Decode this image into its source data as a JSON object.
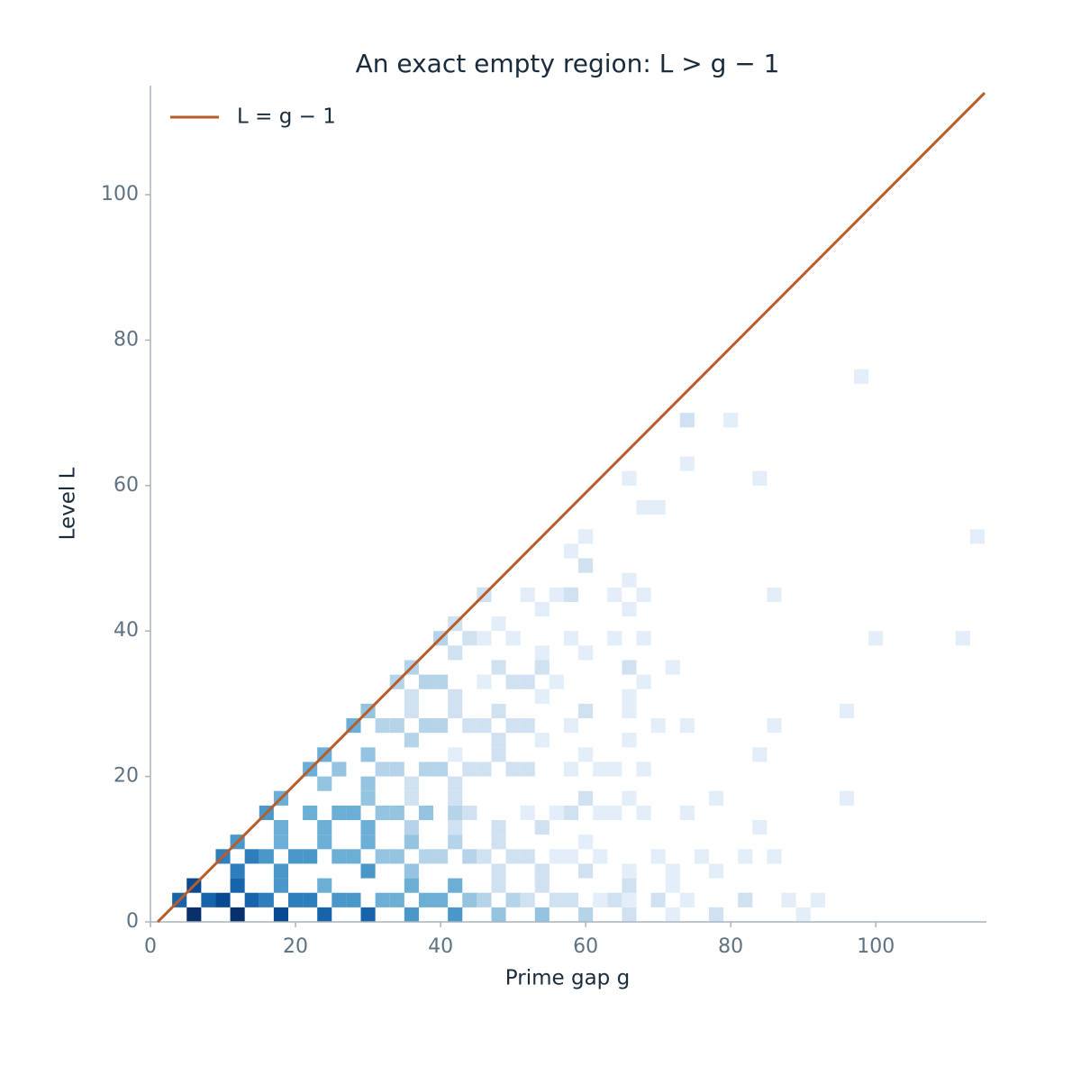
{
  "chart_data": {
    "type": "heatmap",
    "title": "An exact empty region: L > g − 1",
    "x_label": "Prime gap g",
    "y_label": "Level L",
    "xlim": [
      0,
      115
    ],
    "ylim": [
      0,
      115
    ],
    "xticks": [
      0,
      20,
      40,
      60,
      80,
      100
    ],
    "yticks": [
      0,
      20,
      40,
      60,
      80,
      100
    ],
    "colormap": "Blues",
    "legend": "upper left",
    "cells": [
      [
        6,
        1,
        10
      ],
      [
        12,
        1,
        10
      ],
      [
        18,
        1,
        9
      ],
      [
        24,
        1,
        8
      ],
      [
        30,
        1,
        8
      ],
      [
        36,
        1,
        6
      ],
      [
        42,
        1,
        6
      ],
      [
        48,
        1,
        4
      ],
      [
        54,
        1,
        4
      ],
      [
        60,
        1,
        3
      ],
      [
        66,
        1,
        2
      ],
      [
        72,
        1,
        1
      ],
      [
        78,
        1,
        2
      ],
      [
        90,
        1,
        1
      ],
      [
        4,
        3,
        8
      ],
      [
        8,
        3,
        8
      ],
      [
        10,
        3,
        9
      ],
      [
        14,
        3,
        8
      ],
      [
        16,
        3,
        7
      ],
      [
        20,
        3,
        7
      ],
      [
        22,
        3,
        7
      ],
      [
        26,
        3,
        6
      ],
      [
        28,
        3,
        6
      ],
      [
        32,
        3,
        5
      ],
      [
        34,
        3,
        5
      ],
      [
        38,
        3,
        5
      ],
      [
        40,
        3,
        5
      ],
      [
        44,
        3,
        4
      ],
      [
        46,
        3,
        3
      ],
      [
        50,
        3,
        3
      ],
      [
        52,
        3,
        2
      ],
      [
        56,
        3,
        2
      ],
      [
        58,
        3,
        2
      ],
      [
        62,
        3,
        1
      ],
      [
        64,
        3,
        2
      ],
      [
        66,
        3,
        1
      ],
      [
        70,
        3,
        2
      ],
      [
        74,
        3,
        1
      ],
      [
        82,
        3,
        2
      ],
      [
        88,
        3,
        1
      ],
      [
        92,
        3,
        1
      ],
      [
        6,
        5,
        9
      ],
      [
        12,
        5,
        8
      ],
      [
        18,
        5,
        6
      ],
      [
        24,
        5,
        5
      ],
      [
        36,
        5,
        5
      ],
      [
        42,
        5,
        5
      ],
      [
        48,
        5,
        2
      ],
      [
        54,
        5,
        2
      ],
      [
        66,
        5,
        2
      ],
      [
        72,
        5,
        1
      ],
      [
        12,
        7,
        7
      ],
      [
        18,
        7,
        6
      ],
      [
        30,
        7,
        6
      ],
      [
        36,
        7,
        4
      ],
      [
        48,
        7,
        2
      ],
      [
        54,
        7,
        2
      ],
      [
        60,
        7,
        2
      ],
      [
        66,
        7,
        1
      ],
      [
        72,
        7,
        1
      ],
      [
        78,
        7,
        1
      ],
      [
        10,
        9,
        7
      ],
      [
        14,
        9,
        7
      ],
      [
        16,
        9,
        6
      ],
      [
        20,
        9,
        6
      ],
      [
        22,
        9,
        6
      ],
      [
        26,
        9,
        5
      ],
      [
        28,
        9,
        5
      ],
      [
        32,
        9,
        4
      ],
      [
        34,
        9,
        4
      ],
      [
        38,
        9,
        3
      ],
      [
        40,
        9,
        3
      ],
      [
        44,
        9,
        3
      ],
      [
        46,
        9,
        2
      ],
      [
        50,
        9,
        2
      ],
      [
        52,
        9,
        2
      ],
      [
        56,
        9,
        1
      ],
      [
        58,
        9,
        1
      ],
      [
        62,
        9,
        1
      ],
      [
        70,
        9,
        1
      ],
      [
        76,
        9,
        1
      ],
      [
        82,
        9,
        1
      ],
      [
        86,
        9,
        1
      ],
      [
        12,
        11,
        6
      ],
      [
        18,
        11,
        5
      ],
      [
        24,
        11,
        5
      ],
      [
        30,
        11,
        5
      ],
      [
        36,
        11,
        4
      ],
      [
        42,
        11,
        3
      ],
      [
        48,
        11,
        2
      ],
      [
        60,
        11,
        1
      ],
      [
        18,
        13,
        5
      ],
      [
        24,
        13,
        5
      ],
      [
        30,
        13,
        5
      ],
      [
        36,
        13,
        3
      ],
      [
        42,
        13,
        2
      ],
      [
        48,
        13,
        2
      ],
      [
        54,
        13,
        2
      ],
      [
        84,
        13,
        1
      ],
      [
        16,
        15,
        6
      ],
      [
        22,
        15,
        5
      ],
      [
        26,
        15,
        5
      ],
      [
        28,
        15,
        5
      ],
      [
        32,
        15,
        4
      ],
      [
        34,
        15,
        4
      ],
      [
        38,
        15,
        4
      ],
      [
        42,
        15,
        3
      ],
      [
        44,
        15,
        2
      ],
      [
        52,
        15,
        1
      ],
      [
        56,
        15,
        1
      ],
      [
        58,
        15,
        2
      ],
      [
        62,
        15,
        1
      ],
      [
        64,
        15,
        1
      ],
      [
        68,
        15,
        1
      ],
      [
        74,
        15,
        1
      ],
      [
        18,
        17,
        5
      ],
      [
        30,
        17,
        4
      ],
      [
        36,
        17,
        2
      ],
      [
        42,
        17,
        2
      ],
      [
        60,
        17,
        2
      ],
      [
        66,
        17,
        1
      ],
      [
        78,
        17,
        1
      ],
      [
        96,
        17,
        1
      ],
      [
        24,
        19,
        4
      ],
      [
        30,
        19,
        4
      ],
      [
        36,
        19,
        2
      ],
      [
        42,
        19,
        2
      ],
      [
        22,
        21,
        5
      ],
      [
        26,
        21,
        4
      ],
      [
        32,
        21,
        3
      ],
      [
        34,
        21,
        3
      ],
      [
        38,
        21,
        3
      ],
      [
        40,
        21,
        3
      ],
      [
        44,
        21,
        2
      ],
      [
        46,
        21,
        2
      ],
      [
        50,
        21,
        2
      ],
      [
        52,
        21,
        2
      ],
      [
        58,
        21,
        1
      ],
      [
        62,
        21,
        1
      ],
      [
        64,
        21,
        1
      ],
      [
        68,
        21,
        1
      ],
      [
        24,
        23,
        5
      ],
      [
        30,
        23,
        4
      ],
      [
        42,
        23,
        1
      ],
      [
        48,
        23,
        2
      ],
      [
        60,
        23,
        1
      ],
      [
        84,
        23,
        1
      ],
      [
        36,
        25,
        3
      ],
      [
        48,
        25,
        2
      ],
      [
        54,
        25,
        1
      ],
      [
        66,
        25,
        1
      ],
      [
        28,
        27,
        5
      ],
      [
        32,
        27,
        3
      ],
      [
        34,
        27,
        3
      ],
      [
        38,
        27,
        3
      ],
      [
        40,
        27,
        3
      ],
      [
        44,
        27,
        2
      ],
      [
        46,
        27,
        2
      ],
      [
        50,
        27,
        2
      ],
      [
        52,
        27,
        2
      ],
      [
        58,
        27,
        1
      ],
      [
        70,
        27,
        1
      ],
      [
        74,
        27,
        1
      ],
      [
        86,
        27,
        1
      ],
      [
        30,
        29,
        4
      ],
      [
        36,
        29,
        2
      ],
      [
        42,
        29,
        2
      ],
      [
        48,
        29,
        2
      ],
      [
        60,
        29,
        2
      ],
      [
        66,
        29,
        1
      ],
      [
        96,
        29,
        1
      ],
      [
        36,
        31,
        2
      ],
      [
        42,
        31,
        2
      ],
      [
        54,
        31,
        1
      ],
      [
        66,
        31,
        1
      ],
      [
        34,
        33,
        3
      ],
      [
        38,
        33,
        3
      ],
      [
        40,
        33,
        3
      ],
      [
        46,
        33,
        1
      ],
      [
        50,
        33,
        2
      ],
      [
        52,
        33,
        2
      ],
      [
        56,
        33,
        1
      ],
      [
        68,
        33,
        1
      ],
      [
        36,
        35,
        3
      ],
      [
        48,
        35,
        2
      ],
      [
        54,
        35,
        2
      ],
      [
        66,
        35,
        2
      ],
      [
        72,
        35,
        1
      ],
      [
        42,
        37,
        2
      ],
      [
        54,
        37,
        1
      ],
      [
        60,
        37,
        1
      ],
      [
        40,
        39,
        3
      ],
      [
        44,
        39,
        2
      ],
      [
        46,
        39,
        1
      ],
      [
        50,
        39,
        1
      ],
      [
        58,
        39,
        1
      ],
      [
        64,
        39,
        1
      ],
      [
        68,
        39,
        1
      ],
      [
        100,
        39,
        1
      ],
      [
        112,
        39,
        1
      ],
      [
        42,
        41,
        2
      ],
      [
        48,
        41,
        1
      ],
      [
        54,
        43,
        1
      ],
      [
        66,
        43,
        1
      ],
      [
        46,
        45,
        2
      ],
      [
        52,
        45,
        1
      ],
      [
        56,
        45,
        1
      ],
      [
        58,
        45,
        2
      ],
      [
        64,
        45,
        1
      ],
      [
        68,
        45,
        1
      ],
      [
        86,
        45,
        1
      ],
      [
        66,
        47,
        1
      ],
      [
        60,
        49,
        2
      ],
      [
        58,
        51,
        1
      ],
      [
        60,
        53,
        1
      ],
      [
        114,
        53,
        1
      ],
      [
        68,
        57,
        1
      ],
      [
        70,
        57,
        1
      ],
      [
        66,
        61,
        1
      ],
      [
        84,
        61,
        1
      ],
      [
        74,
        63,
        1
      ],
      [
        74,
        69,
        2
      ],
      [
        80,
        69,
        1
      ],
      [
        98,
        75,
        1
      ]
    ],
    "series": [
      {
        "name": "L = g − 1",
        "color": "#b85c2c",
        "x": [
          1,
          115
        ],
        "values": [
          0,
          114
        ]
      }
    ]
  }
}
